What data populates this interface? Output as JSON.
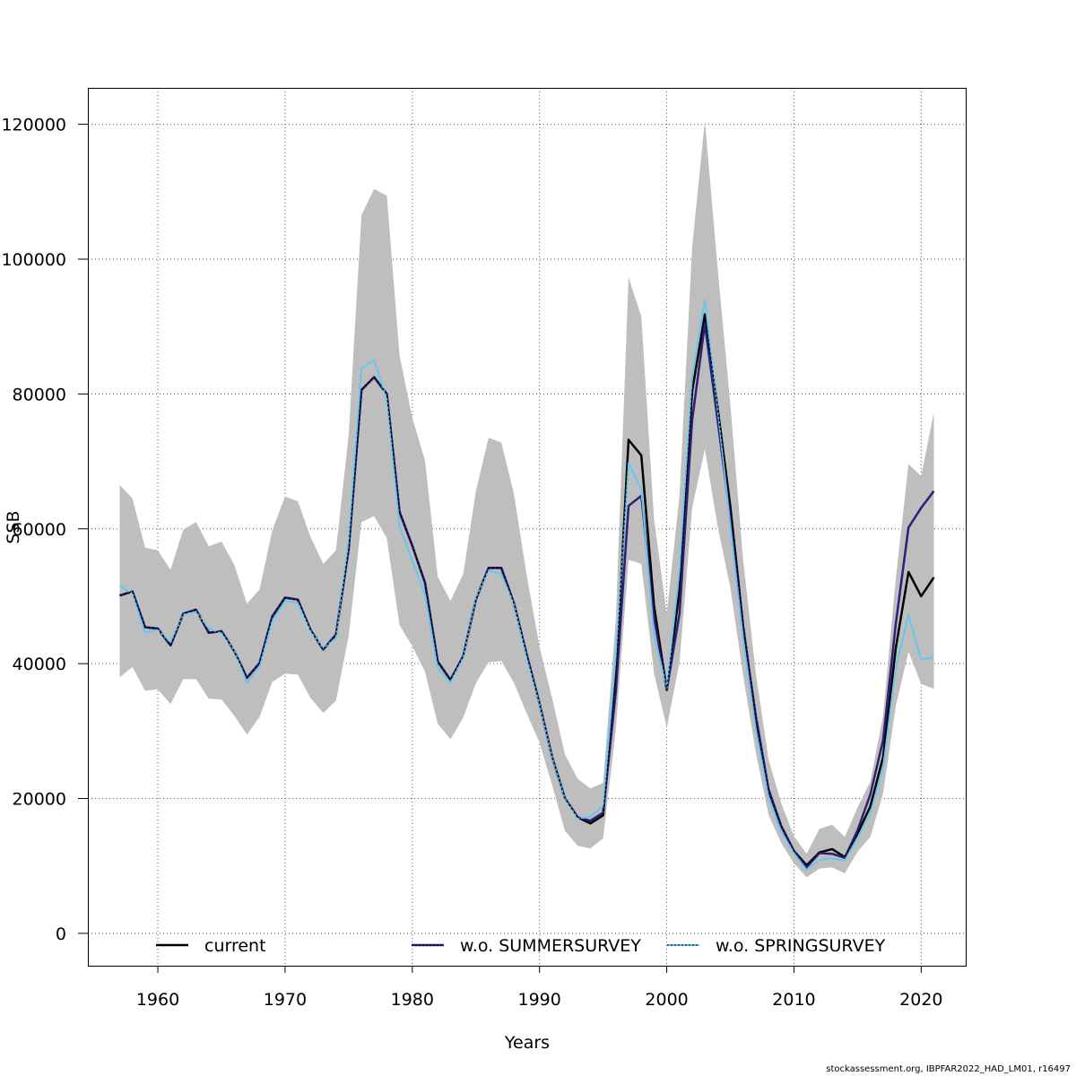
{
  "footer_text": "stockassessment.org, IBPFAR2022_HAD_LM01, r16497",
  "chart_data": {
    "type": "line",
    "title": "",
    "xlabel": "Years",
    "ylabel": "SSB",
    "xlim": [
      1954.5,
      2023.5
    ],
    "ylim": [
      -4800,
      125400
    ],
    "x_ticks": [
      1960,
      1970,
      1980,
      1990,
      2000,
      2010,
      2020
    ],
    "y_ticks": [
      0,
      20000,
      40000,
      60000,
      80000,
      100000,
      120000
    ],
    "y_tick_labels": [
      "0",
      "20000",
      "40000",
      "60000",
      "80000",
      "100000",
      "120000"
    ],
    "grid": true,
    "legend_position": "bottom",
    "x": [
      1957,
      1958,
      1959,
      1960,
      1961,
      1962,
      1963,
      1964,
      1965,
      1966,
      1967,
      1968,
      1969,
      1970,
      1971,
      1972,
      1973,
      1974,
      1975,
      1976,
      1977,
      1978,
      1979,
      1980,
      1981,
      1982,
      1983,
      1984,
      1985,
      1986,
      1987,
      1988,
      1989,
      1990,
      1991,
      1992,
      1993,
      1994,
      1995,
      1996,
      1997,
      1998,
      1999,
      2000,
      2001,
      2002,
      2003,
      2004,
      2005,
      2006,
      2007,
      2008,
      2009,
      2010,
      2011,
      2012,
      2013,
      2014,
      2015,
      2016,
      2017,
      2018,
      2019,
      2020,
      2021
    ],
    "confidence_band": {
      "name": "current CI",
      "color": "#bebebe",
      "upper": [
        66500,
        64500,
        57200,
        56800,
        53900,
        59900,
        61000,
        57400,
        58100,
        54700,
        48900,
        51000,
        59800,
        64800,
        64100,
        58800,
        54800,
        56800,
        74000,
        106500,
        110400,
        109400,
        85700,
        76500,
        70100,
        52900,
        49300,
        53300,
        65600,
        73500,
        72800,
        65100,
        53000,
        42500,
        34800,
        26500,
        22900,
        21500,
        22300,
        46600,
        97300,
        91500,
        61500,
        47400,
        64900,
        101800,
        120500,
        98700,
        78500,
        55500,
        38600,
        25800,
        19300,
        14400,
        11800,
        15500,
        16100,
        14300,
        18700,
        22500,
        32200,
        52600,
        69600,
        67800,
        77300
      ],
      "lower": [
        38000,
        39500,
        36000,
        36200,
        34000,
        37700,
        37700,
        34800,
        34700,
        32300,
        29500,
        32100,
        37300,
        38500,
        38400,
        34900,
        32700,
        34500,
        44200,
        61000,
        61900,
        58600,
        45700,
        42600,
        38800,
        31100,
        28800,
        32000,
        37100,
        40200,
        40400,
        37100,
        32600,
        28300,
        21900,
        15200,
        13000,
        12600,
        14100,
        30200,
        55400,
        54800,
        38600,
        30500,
        40200,
        63100,
        71800,
        60400,
        51300,
        38300,
        26800,
        17600,
        13400,
        10400,
        8300,
        9600,
        9800,
        8900,
        12100,
        14300,
        20700,
        33700,
        41800,
        37000,
        36300
      ]
    },
    "series": [
      {
        "name": "current",
        "color": "#000000",
        "style": "solid",
        "values": [
          50100,
          50700,
          45400,
          45200,
          42700,
          47400,
          48000,
          44600,
          44800,
          41900,
          37900,
          40100,
          47000,
          49800,
          49500,
          45000,
          42100,
          44300,
          57100,
          80600,
          82500,
          80000,
          62500,
          57500,
          52000,
          40300,
          37600,
          41100,
          49500,
          54200,
          54200,
          48900,
          41300,
          34100,
          26100,
          20000,
          17200,
          16300,
          17500,
          37900,
          73200,
          70900,
          48600,
          36100,
          50900,
          80400,
          91800,
          78000,
          63300,
          45700,
          31900,
          21200,
          15900,
          12200,
          10100,
          12000,
          12500,
          11300,
          14800,
          18800,
          26100,
          42300,
          53600,
          50000,
          52800
        ]
      },
      {
        "name": "w.o. SUMMERSURVEY",
        "color": "#2c1f78",
        "style": "solid",
        "values": [
          50100,
          50700,
          45400,
          45200,
          42700,
          47400,
          48000,
          44600,
          44800,
          41900,
          37900,
          40100,
          47000,
          49800,
          49500,
          45000,
          42100,
          44300,
          57100,
          80600,
          82500,
          80000,
          62500,
          57500,
          52000,
          40300,
          37600,
          41100,
          49500,
          54200,
          54200,
          48900,
          41300,
          34100,
          26100,
          20000,
          17200,
          16700,
          17900,
          35800,
          63400,
          64900,
          46900,
          36100,
          47400,
          76100,
          90400,
          76100,
          61600,
          45300,
          32300,
          21400,
          15900,
          12200,
          9800,
          11900,
          11800,
          11200,
          15300,
          20600,
          28600,
          45900,
          60200,
          63100,
          65600
        ]
      },
      {
        "name": "w.o. SPRINGSURVEY",
        "color": "#5ec8f2",
        "style": "dotted",
        "values": [
          51500,
          50400,
          44600,
          45000,
          43200,
          47300,
          47700,
          45200,
          44500,
          42000,
          37200,
          39600,
          46400,
          49300,
          49000,
          44800,
          42300,
          43800,
          58400,
          83800,
          85000,
          79200,
          60400,
          55300,
          50300,
          39300,
          37200,
          40900,
          49700,
          53800,
          53300,
          48800,
          40800,
          34000,
          26000,
          19900,
          17000,
          17300,
          18900,
          41100,
          69800,
          65800,
          44300,
          36400,
          53800,
          82500,
          93900,
          77800,
          60500,
          43800,
          30300,
          20200,
          15100,
          11900,
          9400,
          10900,
          11100,
          10800,
          14200,
          17800,
          24600,
          39400,
          47200,
          40600,
          41000
        ]
      }
    ]
  }
}
